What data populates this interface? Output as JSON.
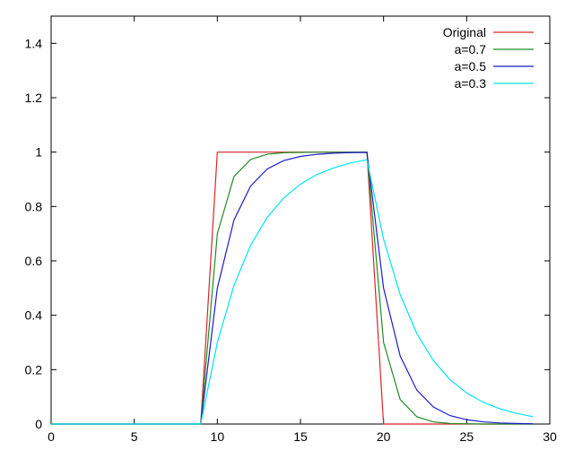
{
  "chart_data": {
    "type": "line",
    "title": "",
    "xlabel": "",
    "ylabel": "",
    "xlim": [
      0,
      30
    ],
    "ylim": [
      0,
      1.5
    ],
    "x_ticks": [
      0,
      5,
      10,
      15,
      20,
      25,
      30
    ],
    "x_tick_labels": [
      "0",
      "5",
      "10",
      "15",
      "20",
      "25",
      "30"
    ],
    "y_ticks": [
      0,
      0.2,
      0.4,
      0.6,
      0.8,
      1,
      1.2,
      1.4
    ],
    "y_tick_labels": [
      "0",
      "0.2",
      "0.4",
      "0.6",
      "0.8",
      "1",
      "1.2",
      "1.4"
    ],
    "grid": false,
    "legend_position": "top-right",
    "x": [
      0,
      1,
      2,
      3,
      4,
      5,
      6,
      7,
      8,
      9,
      10,
      11,
      12,
      13,
      14,
      15,
      16,
      17,
      18,
      19,
      20,
      21,
      22,
      23,
      24,
      25,
      26,
      27,
      28,
      29
    ],
    "series": [
      {
        "name": "Original",
        "color": "#d62728",
        "values": [
          0,
          0,
          0,
          0,
          0,
          0,
          0,
          0,
          0,
          0,
          1,
          1,
          1,
          1,
          1,
          1,
          1,
          1,
          1,
          1,
          0,
          0,
          0,
          0,
          0,
          0,
          0,
          0,
          0,
          0
        ]
      },
      {
        "name": "a=0.7",
        "color": "#228b22",
        "values": [
          0,
          0,
          0,
          0,
          0,
          0,
          0,
          0,
          0,
          0,
          0.7,
          0.91,
          0.973,
          0.992,
          0.998,
          0.999,
          1,
          1,
          1,
          1,
          0.3,
          0.09,
          0.027,
          0.008,
          0.002,
          0.001,
          0,
          0,
          0,
          0
        ]
      },
      {
        "name": "a=0.5",
        "color": "#1c1cc8",
        "values": [
          0,
          0,
          0,
          0,
          0,
          0,
          0,
          0,
          0,
          0,
          0.5,
          0.75,
          0.875,
          0.938,
          0.969,
          0.984,
          0.992,
          0.996,
          0.998,
          0.999,
          0.5,
          0.25,
          0.125,
          0.0625,
          0.031,
          0.016,
          0.008,
          0.004,
          0.002,
          0.001
        ]
      },
      {
        "name": "a=0.3",
        "color": "#00e5ee",
        "values": [
          0,
          0,
          0,
          0,
          0,
          0,
          0,
          0,
          0,
          0,
          0.3,
          0.51,
          0.657,
          0.76,
          0.832,
          0.882,
          0.918,
          0.942,
          0.96,
          0.972,
          0.68,
          0.476,
          0.333,
          0.233,
          0.163,
          0.114,
          0.08,
          0.056,
          0.039,
          0.027
        ]
      }
    ]
  }
}
